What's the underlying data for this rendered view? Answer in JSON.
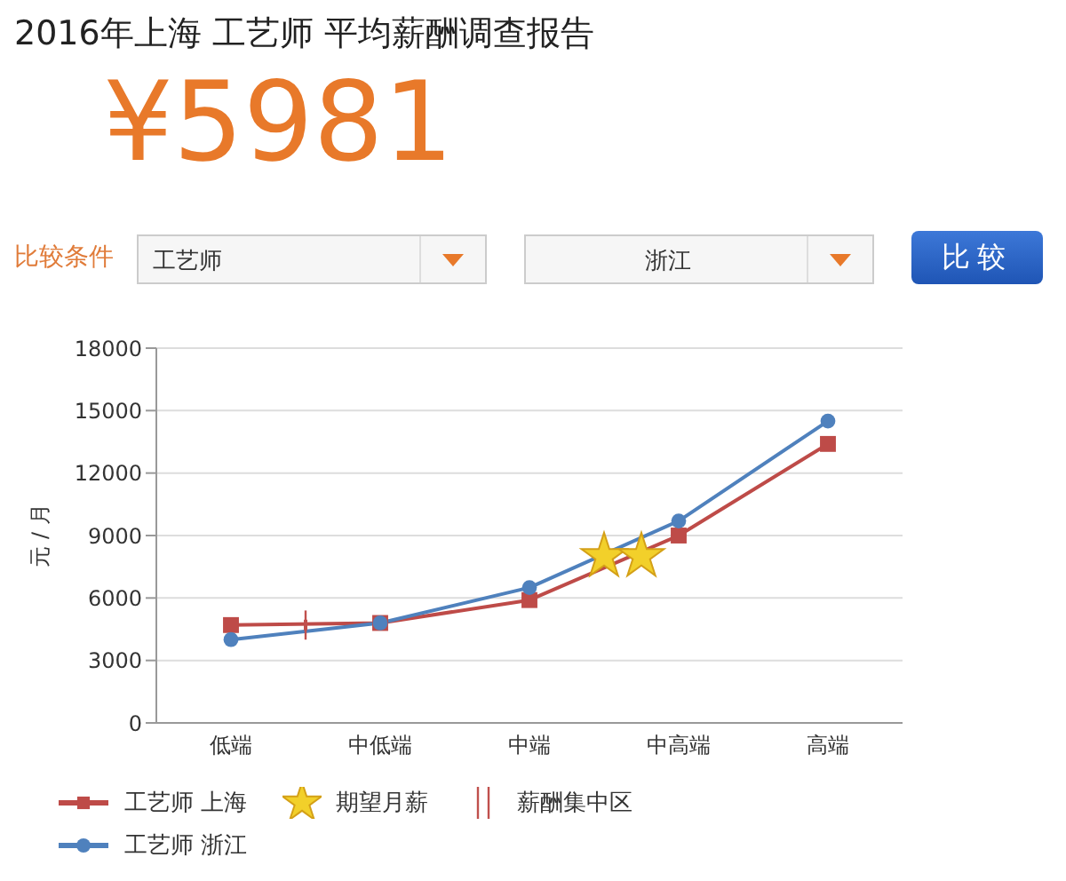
{
  "chart_data": {
    "type": "line",
    "title": "2016年上海 工艺师 平均薪酬调查报告",
    "subtitle": "¥5981",
    "ylabel": "元 / 月",
    "annotations": [
      "比较条件",
      "工艺师",
      "浙江",
      "比较"
    ],
    "categories": [
      "低端",
      null,
      null,
      null,
      "中低端",
      null,
      null,
      null,
      "中端",
      null,
      null,
      null,
      "中高端",
      null,
      null,
      null,
      "高端"
    ],
    "series": [
      {
        "name": "工艺师 上海",
        "color": "#be4b48",
        "marker": "square",
        "values": [
          4700,
          null,
          null,
          null,
          4800,
          null,
          null,
          null,
          5900,
          null,
          null,
          null,
          9000,
          null,
          null,
          null,
          13400
        ]
      },
      {
        "name": "工艺师 浙江",
        "color": "#4f81bd",
        "marker": "circle",
        "values": [
          4000,
          null,
          null,
          null,
          4800,
          null,
          null,
          null,
          6500,
          null,
          null,
          null,
          9700,
          null,
          null,
          null,
          14500
        ]
      },
      {
        "name": "期望月薪",
        "type": "scatter",
        "color": "#f2d02a",
        "marker": "star",
        "values": [
          null,
          null,
          null,
          null,
          null,
          null,
          null,
          null,
          null,
          null,
          8000,
          8000,
          null,
          null,
          null,
          null,
          null
        ]
      },
      {
        "name": "薪酬集中区",
        "type": "scatter",
        "color": "#c0504d",
        "values": [
          null,
          null,
          4700,
          null,
          null,
          null,
          null,
          null,
          null,
          null,
          null,
          null,
          null,
          null,
          null,
          null,
          null
        ],
        "errors": [
          null,
          null,
          700,
          null,
          null,
          null,
          null,
          null,
          null,
          null,
          null,
          null,
          null,
          null,
          null,
          null,
          null
        ]
      }
    ],
    "ylim": [
      0,
      18000
    ],
    "yticks": [
      0,
      3000,
      6000,
      9000,
      12000,
      15000,
      18000
    ],
    "grid": "y",
    "legend": "bottom left"
  }
}
